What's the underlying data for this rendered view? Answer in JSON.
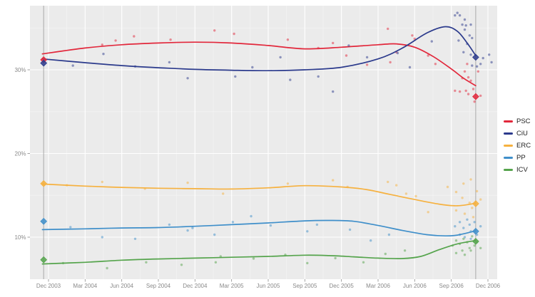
{
  "figure": {
    "background": "#ffffff",
    "panel_background": "#ebebeb",
    "grid_major_color": "#ffffff",
    "grid_minor_color": "#f4f4f4",
    "election_line_color": "#aaaaaa",
    "axis_text_color": "#8a8a8a",
    "legend_text_color": "#1f1f1f"
  },
  "chart_data": {
    "type": "scatter",
    "subtype": "polls-with-smoothed-trend",
    "title": "",
    "xlabel": "",
    "ylabel": "",
    "x_unit": "months since Dec 2003",
    "x_range": [
      -1.5,
      36.8
    ],
    "y_range": [
      5,
      37.7
    ],
    "grid": "on",
    "legend_position": "right",
    "x_ticks": {
      "t": [
        0,
        3,
        6,
        9,
        12,
        15,
        18,
        21,
        24,
        27,
        30,
        33,
        36
      ],
      "labels": [
        "Dec 2003",
        "Mar 2004",
        "Jun 2004",
        "Sep 2004",
        "Dec 2004",
        "Mar 2005",
        "Jun 2005",
        "Sep 2005",
        "Dec 2005",
        "Mar 2006",
        "Jun 2006",
        "Sep 2006",
        "Dec 2006"
      ]
    },
    "y_ticks": {
      "values": [
        10,
        20,
        30
      ],
      "labels": [
        "10%",
        "20%",
        "30%"
      ]
    },
    "y_minor": [
      15,
      25,
      35
    ],
    "election_dates_t": [
      -0.4,
      35.0
    ],
    "series": [
      {
        "name": "PSC",
        "color": "#e2273b",
        "trend": [
          [
            -0.5,
            31.9
          ],
          [
            3,
            32.6
          ],
          [
            6,
            33.0
          ],
          [
            9,
            33.2
          ],
          [
            12,
            33.3
          ],
          [
            15,
            33.2
          ],
          [
            18,
            32.9
          ],
          [
            21,
            32.5
          ],
          [
            24,
            32.7
          ],
          [
            27,
            33.0
          ],
          [
            28.5,
            33.1
          ],
          [
            30,
            32.7
          ],
          [
            31.5,
            31.6
          ],
          [
            33,
            30.1
          ],
          [
            34,
            29.0
          ],
          [
            35,
            28.1
          ]
        ],
        "points": [
          [
            4.4,
            33.0
          ],
          [
            5.5,
            33.5
          ],
          [
            7,
            34.0
          ],
          [
            10,
            33.6
          ],
          [
            13.6,
            34.7
          ],
          [
            15.2,
            34.3
          ],
          [
            19.6,
            33.6
          ],
          [
            22.1,
            32.6
          ],
          [
            23.3,
            33.2
          ],
          [
            24.4,
            31.7
          ],
          [
            26.1,
            30.6
          ],
          [
            27.8,
            34.9
          ],
          [
            28,
            30.9
          ],
          [
            28.5,
            32.1
          ],
          [
            29.8,
            34.1
          ],
          [
            30,
            33.7
          ],
          [
            31.1,
            31.7
          ],
          [
            31.7,
            30.7
          ],
          [
            33.3,
            27.5
          ],
          [
            33.7,
            27.4
          ],
          [
            34.2,
            27.5
          ],
          [
            34.4,
            27.1
          ],
          [
            34.8,
            27.7
          ],
          [
            34.3,
            30.7
          ],
          [
            34.1,
            29.8
          ],
          [
            34.4,
            29.1
          ],
          [
            33.9,
            29.0
          ],
          [
            34.6,
            28.7
          ],
          [
            35.2,
            29.8
          ],
          [
            35.4,
            26.9
          ],
          [
            34.9,
            26.2
          ]
        ],
        "election_results": [
          31.2,
          26.8
        ]
      },
      {
        "name": "CiU",
        "color": "#2b3a8c",
        "trend": [
          [
            -0.5,
            31.3
          ],
          [
            3,
            30.85
          ],
          [
            6,
            30.5
          ],
          [
            9,
            30.25
          ],
          [
            12,
            30.05
          ],
          [
            15,
            29.95
          ],
          [
            18,
            29.9
          ],
          [
            21,
            30.0
          ],
          [
            24,
            30.3
          ],
          [
            27,
            31.3
          ],
          [
            29,
            32.6
          ],
          [
            31,
            34.4
          ],
          [
            32.5,
            35.15
          ],
          [
            33.5,
            34.6
          ],
          [
            34.3,
            33.2
          ],
          [
            35,
            31.7
          ]
        ],
        "points": [
          [
            2,
            30.5
          ],
          [
            4.5,
            31.9
          ],
          [
            7.1,
            30.4
          ],
          [
            9.9,
            30.9
          ],
          [
            11.4,
            29.0
          ],
          [
            15.3,
            29.2
          ],
          [
            16.7,
            30.3
          ],
          [
            19,
            31.5
          ],
          [
            19.8,
            28.8
          ],
          [
            22.1,
            29.2
          ],
          [
            23.3,
            27.4
          ],
          [
            24.6,
            32.9
          ],
          [
            26.1,
            31.5
          ],
          [
            28.6,
            32.0
          ],
          [
            29.6,
            30.3
          ],
          [
            31.4,
            33.4
          ],
          [
            33.3,
            36.5
          ],
          [
            33.5,
            36.8
          ],
          [
            33.7,
            36.5
          ],
          [
            34.1,
            36.0
          ],
          [
            33.9,
            35.4
          ],
          [
            34.2,
            35.3
          ],
          [
            34.6,
            35.4
          ],
          [
            34.1,
            34.8
          ],
          [
            34.5,
            34.1
          ],
          [
            34.7,
            33.8
          ],
          [
            33.6,
            33.5
          ],
          [
            34.3,
            33.1
          ],
          [
            34,
            32.1
          ],
          [
            34.6,
            31.8
          ],
          [
            34.7,
            30.5
          ],
          [
            35.1,
            30.4
          ],
          [
            35.4,
            30.7
          ],
          [
            35.6,
            31.4
          ],
          [
            36.1,
            31.8
          ],
          [
            36.3,
            30.9
          ]
        ],
        "election_results": [
          30.8,
          31.5
        ]
      },
      {
        "name": "ERC",
        "color": "#f6b13f",
        "trend": [
          [
            -0.5,
            16.35
          ],
          [
            3,
            16.1
          ],
          [
            6,
            15.95
          ],
          [
            9,
            15.85
          ],
          [
            12,
            15.8
          ],
          [
            15,
            15.75
          ],
          [
            18,
            15.9
          ],
          [
            21,
            16.15
          ],
          [
            24,
            16.0
          ],
          [
            26,
            15.7
          ],
          [
            28,
            15.1
          ],
          [
            30,
            14.5
          ],
          [
            32,
            13.95
          ],
          [
            33.5,
            13.75
          ],
          [
            35,
            14.05
          ]
        ],
        "points": [
          [
            1.5,
            16.2
          ],
          [
            4.4,
            16.6
          ],
          [
            7.9,
            15.8
          ],
          [
            11.4,
            16.5
          ],
          [
            14.3,
            15.2
          ],
          [
            19.6,
            16.4
          ],
          [
            23.3,
            16.8
          ],
          [
            24.5,
            16.0
          ],
          [
            27.8,
            16.6
          ],
          [
            28.5,
            16.2
          ],
          [
            29.3,
            15.2
          ],
          [
            30.1,
            14.9
          ],
          [
            31.1,
            13.0
          ],
          [
            32.7,
            16.0
          ],
          [
            33.4,
            15.4
          ],
          [
            34,
            16.4
          ],
          [
            34.6,
            16.9
          ],
          [
            33.9,
            14.7
          ],
          [
            34.5,
            14.1
          ],
          [
            34.7,
            13.5
          ],
          [
            33.4,
            13.2
          ],
          [
            34.1,
            12.8
          ],
          [
            34.8,
            12.4
          ],
          [
            35.1,
            15.5
          ],
          [
            35.4,
            14.5
          ]
        ],
        "election_results": [
          16.4,
          14.0
        ]
      },
      {
        "name": "PP",
        "color": "#3f8fca",
        "trend": [
          [
            -0.5,
            10.9
          ],
          [
            3,
            11.0
          ],
          [
            6,
            11.1
          ],
          [
            9,
            11.15
          ],
          [
            12,
            11.3
          ],
          [
            15,
            11.5
          ],
          [
            18,
            11.7
          ],
          [
            21,
            11.95
          ],
          [
            23,
            12.0
          ],
          [
            25,
            11.9
          ],
          [
            27,
            11.4
          ],
          [
            29,
            10.8
          ],
          [
            31,
            10.3
          ],
          [
            32.5,
            10.15
          ],
          [
            33.5,
            10.25
          ],
          [
            35,
            10.75
          ]
        ],
        "points": [
          [
            1.8,
            11.2
          ],
          [
            4.4,
            10.0
          ],
          [
            7.1,
            9.8
          ],
          [
            9.9,
            11.5
          ],
          [
            11.4,
            10.8
          ],
          [
            11.8,
            11.1
          ],
          [
            13.6,
            10.3
          ],
          [
            15.1,
            11.8
          ],
          [
            16.6,
            12.5
          ],
          [
            18.2,
            11.4
          ],
          [
            21.2,
            10.7
          ],
          [
            22,
            11.5
          ],
          [
            24.7,
            10.9
          ],
          [
            26.4,
            9.6
          ],
          [
            27.9,
            10.3
          ],
          [
            33.3,
            11.3
          ],
          [
            33.7,
            11.8
          ],
          [
            34,
            11.1
          ],
          [
            34.3,
            12.1
          ],
          [
            34.5,
            11.5
          ],
          [
            34.6,
            10.7
          ],
          [
            33.7,
            10.3
          ],
          [
            34.1,
            10.0
          ],
          [
            34.6,
            9.8
          ],
          [
            34.9,
            11.8
          ],
          [
            35.1,
            10.3
          ],
          [
            35.4,
            11.3
          ]
        ],
        "election_results": [
          11.9,
          10.7
        ]
      },
      {
        "name": "ICV",
        "color": "#55a44c",
        "trend": [
          [
            -0.5,
            6.8
          ],
          [
            3,
            7.0
          ],
          [
            6,
            7.25
          ],
          [
            9,
            7.4
          ],
          [
            12,
            7.5
          ],
          [
            15,
            7.6
          ],
          [
            18,
            7.7
          ],
          [
            21,
            7.85
          ],
          [
            23,
            7.8
          ],
          [
            25,
            7.65
          ],
          [
            27,
            7.5
          ],
          [
            29,
            7.45
          ],
          [
            30.5,
            7.7
          ],
          [
            32,
            8.5
          ],
          [
            33.5,
            9.2
          ],
          [
            35,
            9.6
          ]
        ],
        "points": [
          [
            1.2,
            6.9
          ],
          [
            4.8,
            6.3
          ],
          [
            8,
            7.0
          ],
          [
            10.9,
            6.7
          ],
          [
            13.7,
            7.0
          ],
          [
            14.1,
            7.7
          ],
          [
            16.8,
            7.45
          ],
          [
            19.4,
            7.9
          ],
          [
            21.2,
            6.9
          ],
          [
            23.5,
            7.5
          ],
          [
            25.8,
            7.0
          ],
          [
            27.6,
            8.0
          ],
          [
            29.2,
            8.4
          ],
          [
            33.1,
            9.0
          ],
          [
            33.4,
            9.6
          ],
          [
            33.7,
            9.2
          ],
          [
            34,
            9.8
          ],
          [
            34.3,
            9.4
          ],
          [
            34.5,
            8.7
          ],
          [
            34.7,
            10.1
          ],
          [
            34.9,
            9.0
          ],
          [
            33.9,
            8.4
          ],
          [
            33.4,
            8.1
          ],
          [
            34.1,
            7.9
          ],
          [
            34.6,
            8.4
          ],
          [
            35.1,
            9.4
          ],
          [
            35.4,
            8.7
          ]
        ],
        "election_results": [
          7.3,
          9.5
        ]
      }
    ]
  }
}
